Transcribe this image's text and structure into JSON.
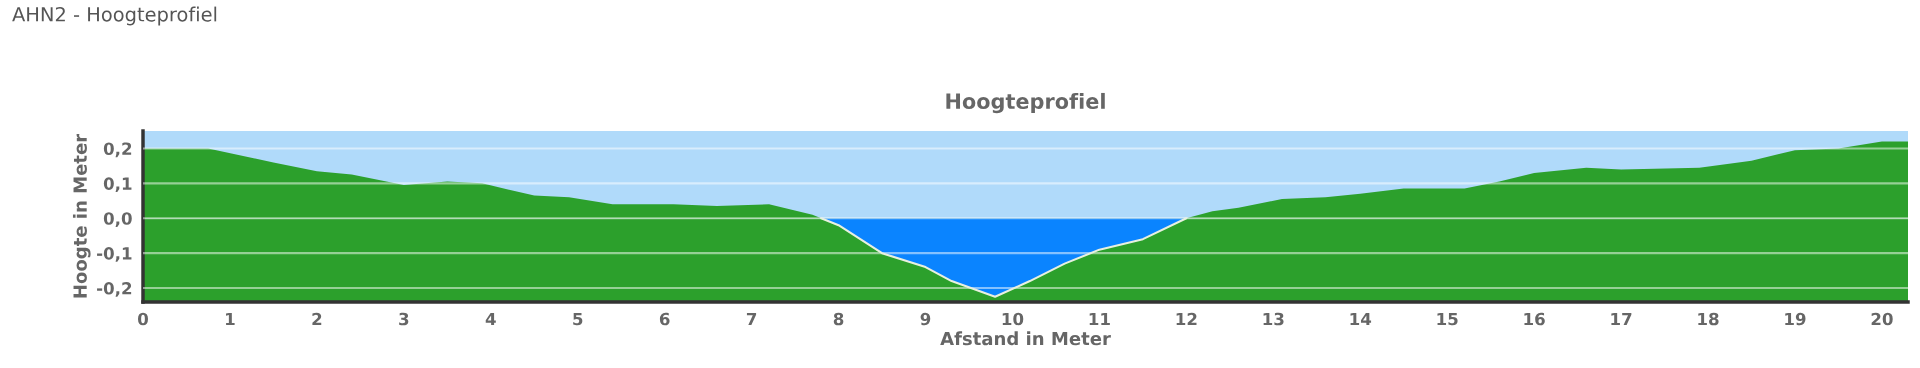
{
  "chart_data": {
    "type": "area",
    "title": "Hoogteprofiel",
    "xlabel": "Afstand in Meter",
    "ylabel": "Hoogte in Meter",
    "annotations": [
      "AHN2 - Hoogteprofiel"
    ],
    "x": [
      0,
      0.75,
      1.5,
      2,
      2.4,
      3,
      3.5,
      3.9,
      4.5,
      4.9,
      5.4,
      6.1,
      6.6,
      7.2,
      7.7,
      7.8,
      8.0,
      8.5,
      9.0,
      9.3,
      9.8,
      10.2,
      10.6,
      11.0,
      11.5,
      12.0,
      12.3,
      12.6,
      13.1,
      13.6,
      14.0,
      14.5,
      15.2,
      15.6,
      16.0,
      16.6,
      17.0,
      17.9,
      18.5,
      19.0,
      19.5,
      20.0,
      20.3
    ],
    "series": [
      {
        "color": "#2ca02c",
        "values": [
          0.2,
          0.2,
          0.16,
          0.135,
          0.125,
          0.095,
          0.105,
          0.1,
          0.065,
          0.06,
          0.04,
          0.04,
          0.035,
          0.04,
          0.01,
          0,
          null,
          null,
          null,
          null,
          null,
          null,
          null,
          null,
          null,
          0,
          0.02,
          0.03,
          0.055,
          0.06,
          0.07,
          0.085,
          0.085,
          0.105,
          0.13,
          0.145,
          0.14,
          0.145,
          0.165,
          0.195,
          0.2,
          0.22,
          0.22
        ]
      },
      {
        "type": "area",
        "color": "#0a84ff",
        "x": [
          7.8,
          8.0,
          8.5,
          9.0,
          9.3,
          9.8,
          10.2,
          10.6,
          11.0,
          11.5,
          12.0
        ],
        "values": [
          0,
          -0.02,
          -0.1,
          -0.14,
          -0.18,
          -0.225,
          -0.18,
          -0.13,
          -0.09,
          -0.06,
          0
        ]
      }
    ],
    "bands": [
      {
        "axis": "y",
        "from": -0.24,
        "to": 0,
        "color": "#2ca02c"
      },
      {
        "axis": "y",
        "from": 0,
        "to": 0.25,
        "color": "#b0dafa"
      }
    ],
    "xlim": [
      0,
      20.3
    ],
    "ylim": [
      -0.24,
      0.25
    ],
    "xticks": [
      0,
      1,
      2,
      3,
      4,
      5,
      6,
      7,
      8,
      9,
      10,
      11,
      12,
      13,
      14,
      15,
      16,
      17,
      18,
      19,
      20
    ],
    "yticks": [
      {
        "value": -0.2,
        "label": "-0,2"
      },
      {
        "value": -0.1,
        "label": "-0,1"
      },
      {
        "value": 0,
        "label": "0,0"
      },
      {
        "value": 0.1,
        "label": "0,1"
      },
      {
        "value": 0.2,
        "label": "0,2"
      }
    ],
    "grid": "y"
  }
}
